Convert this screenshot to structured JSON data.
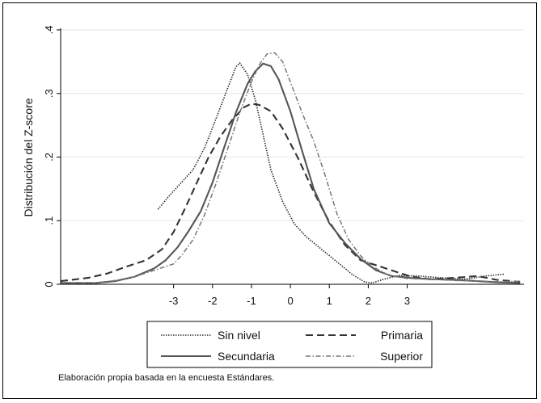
{
  "chart_data": {
    "type": "line",
    "title": "",
    "xlabel": "",
    "ylabel": "Distribución del Z-score",
    "xlim": [
      -5.9,
      6.0
    ],
    "ylim": [
      0,
      0.4
    ],
    "x_ticks": [
      -3,
      -2,
      -1,
      0,
      1,
      2,
      3
    ],
    "x_tick_labels": [
      "-3",
      "-2",
      "-1",
      "0",
      "1",
      "2",
      "3"
    ],
    "y_ticks": [
      0,
      0.1,
      0.2,
      0.3,
      0.4
    ],
    "y_tick_labels": [
      "0",
      ".1",
      ".2",
      ".3",
      ".4"
    ],
    "grid": "horizontal",
    "legend_position": "bottom",
    "series": [
      {
        "name": "Sin nivel",
        "style": "dotted",
        "x": [
          -3.4,
          -3.1,
          -2.8,
          -2.5,
          -2.2,
          -1.9,
          -1.6,
          -1.4,
          -1.3,
          -1.1,
          -0.9,
          -0.7,
          -0.5,
          -0.2,
          0.1,
          0.4,
          0.8,
          1.2,
          1.6,
          1.9,
          2.1,
          2.4,
          2.8,
          3.3,
          3.9,
          4.5,
          5.0,
          5.5
        ],
        "y": [
          0.118,
          0.14,
          0.16,
          0.18,
          0.215,
          0.262,
          0.31,
          0.342,
          0.348,
          0.33,
          0.29,
          0.235,
          0.18,
          0.13,
          0.095,
          0.075,
          0.055,
          0.035,
          0.015,
          0.004,
          0.002,
          0.008,
          0.014,
          0.013,
          0.01,
          0.008,
          0.013,
          0.016
        ]
      },
      {
        "name": "Primaria",
        "style": "dashed",
        "x": [
          -5.9,
          -5.2,
          -4.7,
          -4.2,
          -3.7,
          -3.3,
          -3.0,
          -2.7,
          -2.4,
          -2.1,
          -1.8,
          -1.5,
          -1.2,
          -1.0,
          -0.8,
          -0.5,
          -0.2,
          0.2,
          0.6,
          1.0,
          1.4,
          1.8,
          2.2,
          2.6,
          3.1,
          3.6,
          4.2,
          4.8,
          5.3,
          5.9
        ],
        "y": [
          0.005,
          0.01,
          0.017,
          0.028,
          0.038,
          0.055,
          0.082,
          0.12,
          0.16,
          0.2,
          0.232,
          0.258,
          0.278,
          0.284,
          0.282,
          0.272,
          0.245,
          0.198,
          0.145,
          0.098,
          0.062,
          0.038,
          0.03,
          0.022,
          0.012,
          0.008,
          0.01,
          0.013,
          0.007,
          0.004
        ]
      },
      {
        "name": "Secundaria",
        "style": "solid",
        "x": [
          -5.9,
          -5.0,
          -4.5,
          -4.0,
          -3.5,
          -3.2,
          -2.9,
          -2.6,
          -2.3,
          -2.0,
          -1.7,
          -1.4,
          -1.1,
          -0.9,
          -0.7,
          -0.5,
          -0.3,
          0.0,
          0.3,
          0.6,
          1.0,
          1.4,
          1.8,
          2.2,
          2.6,
          3.1,
          3.6,
          4.2,
          4.8,
          5.3,
          5.9
        ],
        "y": [
          0.002,
          0.002,
          0.005,
          0.012,
          0.025,
          0.038,
          0.058,
          0.085,
          0.115,
          0.16,
          0.215,
          0.27,
          0.315,
          0.335,
          0.347,
          0.343,
          0.322,
          0.272,
          0.21,
          0.15,
          0.096,
          0.065,
          0.04,
          0.022,
          0.013,
          0.01,
          0.008,
          0.007,
          0.005,
          0.003,
          0.002
        ]
      },
      {
        "name": "Superior",
        "style": "dashdot",
        "x": [
          -5.9,
          -5.0,
          -4.5,
          -4.0,
          -3.6,
          -3.3,
          -3.0,
          -2.8,
          -2.5,
          -2.2,
          -1.9,
          -1.6,
          -1.3,
          -1.0,
          -0.8,
          -0.6,
          -0.4,
          -0.2,
          0.0,
          0.3,
          0.6,
          0.9,
          1.2,
          1.5,
          1.8,
          2.1,
          2.5,
          3.0,
          3.6,
          4.2,
          4.8,
          5.4,
          5.9
        ],
        "y": [
          0.001,
          0.002,
          0.006,
          0.012,
          0.02,
          0.026,
          0.032,
          0.045,
          0.07,
          0.11,
          0.16,
          0.215,
          0.27,
          0.318,
          0.345,
          0.362,
          0.364,
          0.35,
          0.318,
          0.27,
          0.225,
          0.17,
          0.11,
          0.07,
          0.045,
          0.028,
          0.015,
          0.009,
          0.008,
          0.006,
          0.005,
          0.004,
          0.005
        ]
      }
    ]
  },
  "footnote": "Elaboración propia basada en la encuesta Estándares."
}
